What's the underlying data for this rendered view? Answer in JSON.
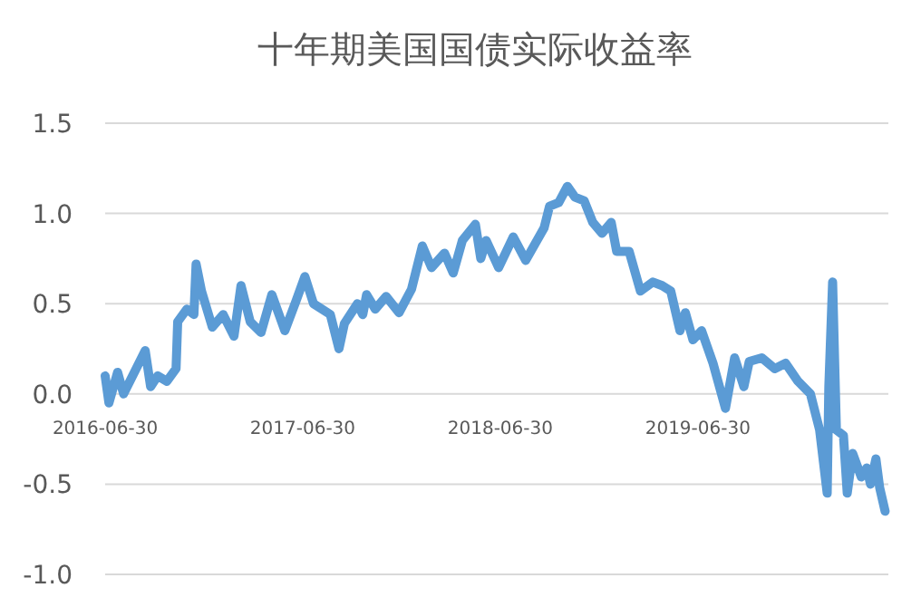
{
  "chart_data": {
    "type": "line",
    "title": "十年期美国国债实际收益率",
    "x": [
      "2016-06-30",
      "2016-07-07",
      "2016-07-23",
      "2016-08-03",
      "2016-09-12",
      "2016-09-22",
      "2016-10-05",
      "2016-10-22",
      "2016-11-08",
      "2016-11-11",
      "2016-11-28",
      "2016-12-11",
      "2016-12-15",
      "2016-12-25",
      "2017-01-14",
      "2017-02-03",
      "2017-02-23",
      "2017-03-08",
      "2017-03-25",
      "2017-04-14",
      "2017-05-04",
      "2017-05-28",
      "2017-06-17",
      "2017-07-04",
      "2017-07-20",
      "2017-08-20",
      "2017-09-05",
      "2017-09-15",
      "2017-10-09",
      "2017-10-19",
      "2017-10-26",
      "2017-11-11",
      "2017-12-01",
      "2017-12-25",
      "2018-01-17",
      "2018-02-06",
      "2018-02-23",
      "2018-03-19",
      "2018-04-04",
      "2018-04-21",
      "2018-05-15",
      "2018-05-25",
      "2018-06-04",
      "2018-06-27",
      "2018-07-24",
      "2018-08-16",
      "2018-09-19",
      "2018-09-29",
      "2018-10-16",
      "2018-11-01",
      "2018-11-15",
      "2018-12-02",
      "2018-12-18",
      "2019-01-04",
      "2019-01-21",
      "2019-01-31",
      "2019-02-23",
      "2019-03-16",
      "2019-04-08",
      "2019-04-25",
      "2019-05-11",
      "2019-05-28",
      "2019-06-07",
      "2019-06-21",
      "2019-07-07",
      "2019-07-28",
      "2019-08-20",
      "2019-09-06",
      "2019-09-23",
      "2019-10-03",
      "2019-10-26",
      "2019-11-19",
      "2019-12-09",
      "2020-01-01",
      "2020-01-24",
      "2020-02-10",
      "2020-02-24",
      "2020-02-27",
      "2020-03-05",
      "2020-03-12",
      "2020-03-25",
      "2020-04-01",
      "2020-04-11",
      "2020-04-27",
      "2020-05-07",
      "2020-05-14",
      "2020-05-24",
      "2020-05-31",
      "2020-06-10"
    ],
    "series": [
      {
        "color": "#5b9bd5",
        "values": [
          0.1,
          -0.05,
          0.12,
          0.0,
          0.24,
          0.04,
          0.1,
          0.07,
          0.14,
          0.4,
          0.47,
          0.44,
          0.72,
          0.57,
          0.37,
          0.44,
          0.32,
          0.6,
          0.4,
          0.34,
          0.55,
          0.35,
          0.51,
          0.65,
          0.5,
          0.44,
          0.25,
          0.39,
          0.5,
          0.44,
          0.55,
          0.47,
          0.54,
          0.45,
          0.58,
          0.82,
          0.7,
          0.78,
          0.67,
          0.85,
          0.94,
          0.75,
          0.85,
          0.7,
          0.87,
          0.74,
          0.92,
          1.04,
          1.06,
          1.15,
          1.09,
          1.07,
          0.95,
          0.89,
          0.95,
          0.79,
          0.79,
          0.57,
          0.62,
          0.6,
          0.57,
          0.35,
          0.45,
          0.3,
          0.35,
          0.17,
          -0.08,
          0.2,
          0.04,
          0.18,
          0.2,
          0.14,
          0.17,
          0.07,
          0.0,
          -0.2,
          -0.55,
          0.04,
          0.62,
          -0.2,
          -0.23,
          -0.55,
          -0.33,
          -0.46,
          -0.41,
          -0.5,
          -0.36,
          -0.52,
          -0.65
        ]
      }
    ],
    "xlim": [
      "2016-06-30",
      "2020-06-16"
    ],
    "xticks": [
      "2016-06-30",
      "2017-06-30",
      "2018-06-30",
      "2019-06-30"
    ],
    "ylim": [
      -1.0,
      1.5
    ],
    "yticks": [
      {
        "value": -1.0,
        "label": "-1.0"
      },
      {
        "value": -0.5,
        "label": "-0.5"
      },
      {
        "value": 0,
        "label": "0.0"
      },
      {
        "value": 0.5,
        "label": "0.5"
      },
      {
        "value": 1.0,
        "label": "1.0"
      },
      {
        "value": 1.5,
        "label": "1.5"
      }
    ],
    "grid": "y",
    "marker": "none",
    "line_style": "solid"
  }
}
